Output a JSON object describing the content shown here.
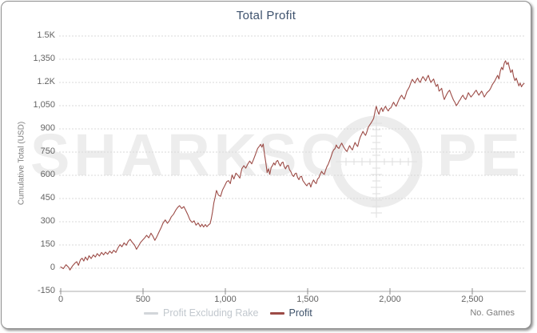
{
  "title": "Total Profit",
  "watermark": {
    "part1": "SHARK",
    "part2": "SC",
    "part3": "PE"
  },
  "legend": [
    {
      "label": "Profit Excluding Rake",
      "swatch_color": "#d2d6da",
      "state": "muted"
    },
    {
      "label": "Profit",
      "swatch_color": "#9c4b46",
      "state": "active"
    }
  ],
  "colors": {
    "line": "#9c4b46",
    "grid": "#d9d9d9",
    "axis": "#adadad",
    "tick_mark": "#8c8c8c",
    "title_text": "#3e526d",
    "watermark": "#ededed",
    "watermark_cross": "#e2e2e2"
  },
  "chart_data": {
    "type": "line",
    "title": "Total Profit",
    "xlabel": "No. Games",
    "ylabel": "Cumulative Total (USD)",
    "xlim": [
      0,
      2830
    ],
    "ylim": [
      -150,
      1500
    ],
    "grid": "horizontal-dashed",
    "legend_position": "bottom-center",
    "x_ticks": [
      0,
      500,
      1000,
      1500,
      2000,
      2500
    ],
    "x_tick_labels": [
      "0",
      "500",
      "1,000",
      "1,500",
      "2,000",
      "2,500"
    ],
    "y_ticks": [
      1500,
      1350,
      1200,
      1050,
      900,
      750,
      600,
      450,
      300,
      150,
      0,
      -150
    ],
    "y_tick_labels": [
      "1.5K",
      "1,350",
      "1.2K",
      "1,050",
      "900",
      "750",
      "600",
      "450",
      "300",
      "150",
      "0",
      "-150"
    ],
    "series": [
      {
        "name": "Profit Excluding Rake",
        "visible": false,
        "color": "#d2d6da",
        "points": []
      },
      {
        "name": "Profit",
        "visible": true,
        "color": "#9c4b46",
        "points": [
          [
            0,
            8
          ],
          [
            16,
            -3
          ],
          [
            32,
            22
          ],
          [
            48,
            5
          ],
          [
            56,
            -12
          ],
          [
            72,
            15
          ],
          [
            88,
            34
          ],
          [
            97,
            42
          ],
          [
            108,
            18
          ],
          [
            120,
            55
          ],
          [
            130,
            64
          ],
          [
            140,
            46
          ],
          [
            150,
            72
          ],
          [
            162,
            52
          ],
          [
            172,
            80
          ],
          [
            185,
            62
          ],
          [
            198,
            86
          ],
          [
            210,
            72
          ],
          [
            222,
            94
          ],
          [
            235,
            78
          ],
          [
            248,
            102
          ],
          [
            260,
            86
          ],
          [
            272,
            104
          ],
          [
            285,
            90
          ],
          [
            298,
            110
          ],
          [
            310,
            96
          ],
          [
            322,
            116
          ],
          [
            335,
            102
          ],
          [
            348,
            132
          ],
          [
            360,
            152
          ],
          [
            372,
            138
          ],
          [
            385,
            164
          ],
          [
            398,
            148
          ],
          [
            410,
            174
          ],
          [
            422,
            186
          ],
          [
            435,
            166
          ],
          [
            448,
            150
          ],
          [
            460,
            122
          ],
          [
            472,
            142
          ],
          [
            485,
            166
          ],
          [
            498,
            182
          ],
          [
            510,
            196
          ],
          [
            522,
            212
          ],
          [
            535,
            196
          ],
          [
            548,
            226
          ],
          [
            560,
            206
          ],
          [
            572,
            180
          ],
          [
            585,
            206
          ],
          [
            598,
            236
          ],
          [
            610,
            262
          ],
          [
            622,
            292
          ],
          [
            635,
            312
          ],
          [
            648,
            290
          ],
          [
            660,
            306
          ],
          [
            672,
            332
          ],
          [
            685,
            348
          ],
          [
            698,
            374
          ],
          [
            710,
            392
          ],
          [
            722,
            404
          ],
          [
            735,
            386
          ],
          [
            748,
            398
          ],
          [
            760,
            372
          ],
          [
            772,
            346
          ],
          [
            785,
            312
          ],
          [
            798,
            296
          ],
          [
            810,
            306
          ],
          [
            822,
            278
          ],
          [
            835,
            292
          ],
          [
            848,
            268
          ],
          [
            858,
            284
          ],
          [
            868,
            266
          ],
          [
            878,
            282
          ],
          [
            888,
            268
          ],
          [
            898,
            280
          ],
          [
            908,
            288
          ],
          [
            915,
            322
          ],
          [
            922,
            362
          ],
          [
            930,
            422
          ],
          [
            938,
            458
          ],
          [
            946,
            502
          ],
          [
            958,
            472
          ],
          [
            971,
            464
          ],
          [
            983,
            506
          ],
          [
            995,
            530
          ],
          [
            1008,
            558
          ],
          [
            1019,
            566
          ],
          [
            1030,
            546
          ],
          [
            1041,
            602
          ],
          [
            1052,
            576
          ],
          [
            1064,
            614
          ],
          [
            1076,
            600
          ],
          [
            1088,
            582
          ],
          [
            1100,
            642
          ],
          [
            1112,
            662
          ],
          [
            1124,
            646
          ],
          [
            1136,
            672
          ],
          [
            1148,
            692
          ],
          [
            1160,
            674
          ],
          [
            1172,
            704
          ],
          [
            1184,
            738
          ],
          [
            1196,
            774
          ],
          [
            1208,
            790
          ],
          [
            1214,
            800
          ],
          [
            1222,
            782
          ],
          [
            1230,
            802
          ],
          [
            1238,
            736
          ],
          [
            1246,
            680
          ],
          [
            1254,
            618
          ],
          [
            1262,
            642
          ],
          [
            1270,
            606
          ],
          [
            1278,
            650
          ],
          [
            1286,
            662
          ],
          [
            1294,
            680
          ],
          [
            1302,
            666
          ],
          [
            1310,
            690
          ],
          [
            1318,
            696
          ],
          [
            1326,
            674
          ],
          [
            1334,
            660
          ],
          [
            1342,
            680
          ],
          [
            1350,
            686
          ],
          [
            1358,
            656
          ],
          [
            1366,
            642
          ],
          [
            1374,
            660
          ],
          [
            1382,
            664
          ],
          [
            1390,
            636
          ],
          [
            1398,
            624
          ],
          [
            1406,
            602
          ],
          [
            1415,
            592
          ],
          [
            1423,
            610
          ],
          [
            1431,
            614
          ],
          [
            1439,
            586
          ],
          [
            1447,
            572
          ],
          [
            1455,
            590
          ],
          [
            1463,
            594
          ],
          [
            1471,
            566
          ],
          [
            1479,
            554
          ],
          [
            1487,
            542
          ],
          [
            1495,
            532
          ],
          [
            1503,
            546
          ],
          [
            1511,
            550
          ],
          [
            1519,
            524
          ],
          [
            1527,
            552
          ],
          [
            1536,
            570
          ],
          [
            1544,
            554
          ],
          [
            1552,
            546
          ],
          [
            1560,
            576
          ],
          [
            1568,
            584
          ],
          [
            1576,
            606
          ],
          [
            1585,
            626
          ],
          [
            1593,
            612
          ],
          [
            1601,
            606
          ],
          [
            1609,
            634
          ],
          [
            1617,
            656
          ],
          [
            1625,
            672
          ],
          [
            1633,
            694
          ],
          [
            1641,
            716
          ],
          [
            1650,
            746
          ],
          [
            1658,
            764
          ],
          [
            1666,
            772
          ],
          [
            1674,
            796
          ],
          [
            1682,
            780
          ],
          [
            1690,
            774
          ],
          [
            1698,
            792
          ],
          [
            1707,
            808
          ],
          [
            1715,
            790
          ],
          [
            1723,
            776
          ],
          [
            1731,
            762
          ],
          [
            1739,
            754
          ],
          [
            1747,
            774
          ],
          [
            1755,
            792
          ],
          [
            1763,
            776
          ],
          [
            1772,
            764
          ],
          [
            1780,
            790
          ],
          [
            1788,
            812
          ],
          [
            1796,
            796
          ],
          [
            1804,
            786
          ],
          [
            1812,
            822
          ],
          [
            1820,
            848
          ],
          [
            1828,
            866
          ],
          [
            1836,
            884
          ],
          [
            1844,
            868
          ],
          [
            1852,
            858
          ],
          [
            1860,
            882
          ],
          [
            1869,
            912
          ],
          [
            1877,
            926
          ],
          [
            1885,
            938
          ],
          [
            1893,
            952
          ],
          [
            1901,
            968
          ],
          [
            1909,
            1012
          ],
          [
            1917,
            1046
          ],
          [
            1925,
            1016
          ],
          [
            1933,
            994
          ],
          [
            1941,
            1022
          ],
          [
            1949,
            1036
          ],
          [
            1957,
            1012
          ],
          [
            1965,
            1032
          ],
          [
            1973,
            1046
          ],
          [
            1981,
            1028
          ],
          [
            1990,
            1016
          ],
          [
            1998,
            1032
          ],
          [
            2006,
            1036
          ],
          [
            2014,
            1056
          ],
          [
            2022,
            1072
          ],
          [
            2030,
            1056
          ],
          [
            2038,
            1046
          ],
          [
            2046,
            1068
          ],
          [
            2055,
            1090
          ],
          [
            2063,
            1106
          ],
          [
            2071,
            1118
          ],
          [
            2079,
            1102
          ],
          [
            2087,
            1092
          ],
          [
            2095,
            1116
          ],
          [
            2103,
            1144
          ],
          [
            2111,
            1158
          ],
          [
            2119,
            1174
          ],
          [
            2127,
            1200
          ],
          [
            2136,
            1220
          ],
          [
            2144,
            1206
          ],
          [
            2152,
            1196
          ],
          [
            2160,
            1216
          ],
          [
            2168,
            1228
          ],
          [
            2176,
            1210
          ],
          [
            2184,
            1200
          ],
          [
            2192,
            1222
          ],
          [
            2200,
            1238
          ],
          [
            2208,
            1226
          ],
          [
            2217,
            1210
          ],
          [
            2225,
            1230
          ],
          [
            2233,
            1246
          ],
          [
            2241,
            1220
          ],
          [
            2249,
            1200
          ],
          [
            2257,
            1212
          ],
          [
            2265,
            1222
          ],
          [
            2273,
            1196
          ],
          [
            2281,
            1174
          ],
          [
            2290,
            1188
          ],
          [
            2298,
            1144
          ],
          [
            2306,
            1152
          ],
          [
            2314,
            1162
          ],
          [
            2322,
            1120
          ],
          [
            2330,
            1090
          ],
          [
            2338,
            1108
          ],
          [
            2346,
            1126
          ],
          [
            2354,
            1140
          ],
          [
            2362,
            1150
          ],
          [
            2370,
            1128
          ],
          [
            2378,
            1106
          ],
          [
            2386,
            1086
          ],
          [
            2395,
            1070
          ],
          [
            2403,
            1050
          ],
          [
            2411,
            1062
          ],
          [
            2419,
            1078
          ],
          [
            2427,
            1090
          ],
          [
            2435,
            1106
          ],
          [
            2443,
            1118
          ],
          [
            2451,
            1100
          ],
          [
            2460,
            1090
          ],
          [
            2468,
            1110
          ],
          [
            2476,
            1134
          ],
          [
            2484,
            1120
          ],
          [
            2492,
            1106
          ],
          [
            2500,
            1116
          ],
          [
            2508,
            1126
          ],
          [
            2516,
            1140
          ],
          [
            2524,
            1150
          ],
          [
            2532,
            1132
          ],
          [
            2540,
            1118
          ],
          [
            2548,
            1130
          ],
          [
            2557,
            1144
          ],
          [
            2565,
            1126
          ],
          [
            2573,
            1106
          ],
          [
            2581,
            1120
          ],
          [
            2589,
            1134
          ],
          [
            2597,
            1142
          ],
          [
            2605,
            1150
          ],
          [
            2613,
            1166
          ],
          [
            2621,
            1184
          ],
          [
            2629,
            1198
          ],
          [
            2637,
            1210
          ],
          [
            2645,
            1228
          ],
          [
            2654,
            1246
          ],
          [
            2662,
            1222
          ],
          [
            2670,
            1272
          ],
          [
            2678,
            1298
          ],
          [
            2686,
            1282
          ],
          [
            2694,
            1324
          ],
          [
            2702,
            1340
          ],
          [
            2710,
            1316
          ],
          [
            2718,
            1330
          ],
          [
            2726,
            1292
          ],
          [
            2734,
            1264
          ],
          [
            2743,
            1282
          ],
          [
            2751,
            1238
          ],
          [
            2759,
            1212
          ],
          [
            2767,
            1228
          ],
          [
            2775,
            1204
          ],
          [
            2783,
            1178
          ],
          [
            2791,
            1196
          ],
          [
            2799,
            1172
          ],
          [
            2807,
            1186
          ],
          [
            2815,
            1194
          ]
        ]
      }
    ]
  }
}
